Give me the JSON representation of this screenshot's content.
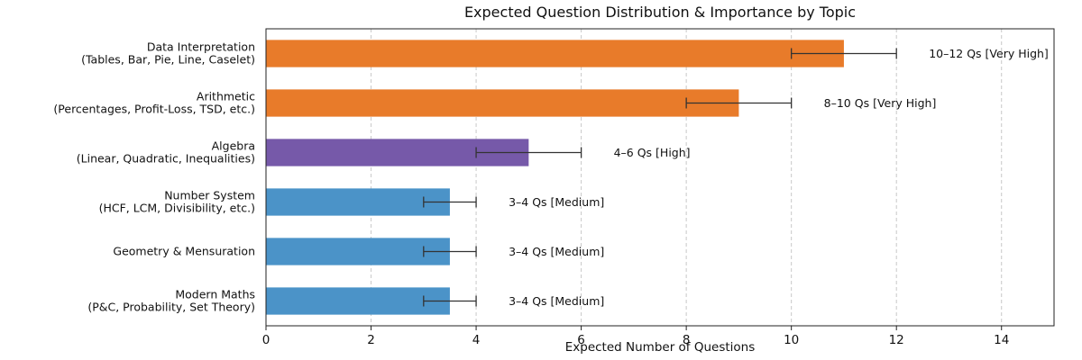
{
  "chart_data": {
    "type": "bar",
    "orientation": "horizontal",
    "title": "Expected Question Distribution & Importance by Topic",
    "xlabel": "Expected Number of Questions",
    "ylabel": "",
    "xlim": [
      0,
      15
    ],
    "xticks": [
      0,
      2,
      4,
      6,
      8,
      10,
      12,
      14
    ],
    "grid": "vertical dashed",
    "categories": [
      [
        "Data Interpretation",
        "(Tables, Bar, Pie, Line, Caselet)"
      ],
      [
        "Arithmetic",
        "(Percentages, Profit-Loss, TSD, etc.)"
      ],
      [
        "Algebra",
        "(Linear, Quadratic, Inequalities)"
      ],
      [
        "Number System",
        "(HCF, LCM, Divisibility, etc.)"
      ],
      [
        "Geometry & Mensuration"
      ],
      [
        "Modern Maths",
        "(P&C, Probability, Set Theory)"
      ]
    ],
    "values": [
      11,
      9,
      5,
      3.5,
      3.5,
      3.5
    ],
    "error_low": [
      10,
      8,
      4,
      3,
      3,
      3
    ],
    "error_high": [
      12,
      10,
      6,
      4,
      4,
      4
    ],
    "annotations": [
      "10–12 Qs  [Very High]",
      "8–10 Qs  [Very High]",
      "4–6 Qs  [High]",
      "3–4 Qs  [Medium]",
      "3–4 Qs  [Medium]",
      "3–4 Qs  [Medium]"
    ],
    "colors": [
      "#e87b2a",
      "#e87b2a",
      "#7659a9",
      "#4b93c8",
      "#4b93c8",
      "#4b93c8"
    ]
  }
}
